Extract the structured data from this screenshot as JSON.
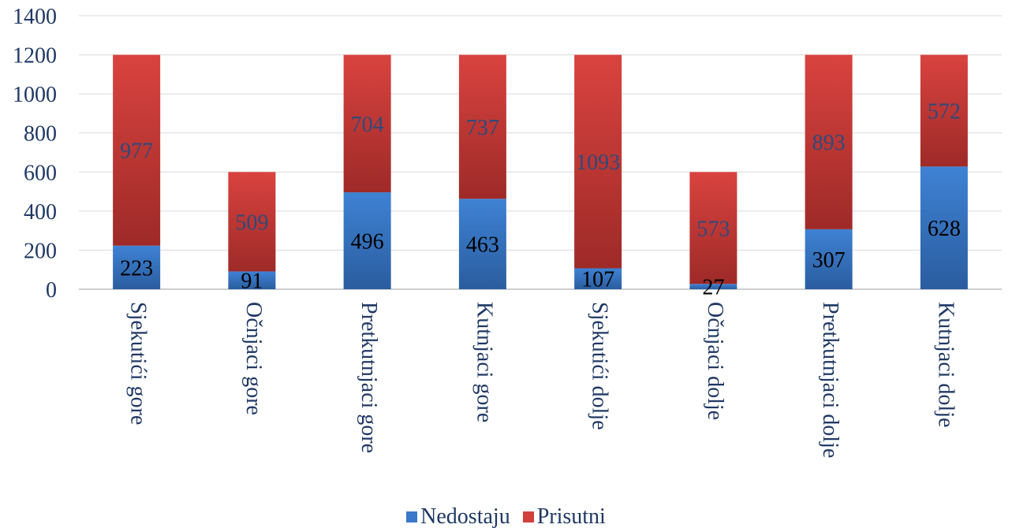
{
  "chart_data": {
    "type": "bar",
    "stacked": true,
    "categories": [
      "Sjekutići gore",
      "Očnjaci gore",
      "Pretkutnjaci gore",
      "Kutnjaci gore",
      "Sjekutići dolje",
      "Očnjaci dolje",
      "Pretkutnjaci dolje",
      "Kutnjaci dolje"
    ],
    "series": [
      {
        "name": "Nedostaju",
        "values": [
          223,
          91,
          496,
          463,
          107,
          27,
          307,
          628
        ],
        "color": "#3a78c9"
      },
      {
        "name": "Prisutni",
        "values": [
          977,
          509,
          704,
          737,
          1093,
          573,
          893,
          572
        ],
        "color": "#d0403c"
      }
    ],
    "ylim": [
      0,
      1400
    ],
    "yticks": [
      "0",
      "200",
      "400",
      "600",
      "800",
      "1000",
      "1200",
      "1400"
    ],
    "grid": true,
    "legend_position": "bottom",
    "title": "",
    "xlabel": "",
    "ylabel": ""
  }
}
